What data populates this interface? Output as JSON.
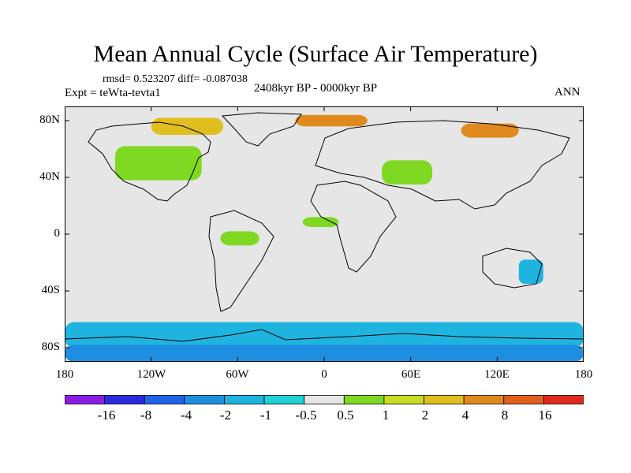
{
  "title": "Mean Annual Cycle (Surface Air Temperature)",
  "stats": "rmsd= 0.523207 diff= -0.087038",
  "experiment": "Expt = teWta-tevta1",
  "period": "2408kyr BP - 0000kyr BP",
  "season": "ANN",
  "colors": {
    "background": "#e6e6e6",
    "coastline": "#000000"
  },
  "map": {
    "lat_range": [
      -90,
      90
    ],
    "lon_range": [
      -180,
      180
    ],
    "lat_ticks": [
      {
        "value": 80,
        "label": "80N"
      },
      {
        "value": 40,
        "label": "40N"
      },
      {
        "value": 0,
        "label": "0"
      },
      {
        "value": -40,
        "label": "40S"
      },
      {
        "value": -80,
        "label": "80S"
      }
    ],
    "lon_ticks": [
      {
        "value": -180,
        "label": "180"
      },
      {
        "value": -120,
        "label": "120W"
      },
      {
        "value": -60,
        "label": "60W"
      },
      {
        "value": 0,
        "label": "0"
      },
      {
        "value": 60,
        "label": "60E"
      },
      {
        "value": 120,
        "label": "120E"
      },
      {
        "value": 180,
        "label": "180"
      }
    ],
    "anomalies": [
      {
        "region": "southern-ocean-band",
        "level": "-1",
        "lon": [
          -180,
          180
        ],
        "lat": [
          -80,
          -62
        ]
      },
      {
        "region": "antarctica-coast",
        "level": "-2",
        "lon": [
          -180,
          180
        ],
        "lat": [
          -90,
          -78
        ]
      },
      {
        "region": "north-america",
        "level": "0.5",
        "lon": [
          -145,
          -85
        ],
        "lat": [
          38,
          62
        ]
      },
      {
        "region": "central-asia",
        "level": "0.5",
        "lon": [
          40,
          75
        ],
        "lat": [
          35,
          52
        ]
      },
      {
        "region": "sahel",
        "level": "0.5",
        "lon": [
          -15,
          10
        ],
        "lat": [
          5,
          12
        ]
      },
      {
        "region": "amazon",
        "level": "0.5",
        "lon": [
          -72,
          -45
        ],
        "lat": [
          -8,
          2
        ]
      },
      {
        "region": "australia",
        "level": "-1",
        "lon": [
          135,
          152
        ],
        "lat": [
          -35,
          -18
        ]
      },
      {
        "region": "greenland-sea",
        "level": "4",
        "lon": [
          -20,
          30
        ],
        "lat": [
          76,
          84
        ]
      },
      {
        "region": "canadian-arctic",
        "level": "2",
        "lon": [
          -120,
          -70
        ],
        "lat": [
          70,
          82
        ]
      },
      {
        "region": "siberia",
        "level": "4",
        "lon": [
          95,
          135
        ],
        "lat": [
          68,
          78
        ]
      }
    ]
  },
  "colorbar": {
    "labels": [
      "-16",
      "-8",
      "-4",
      "-2",
      "-1",
      "-0.5",
      "0.5",
      "1",
      "2",
      "4",
      "8",
      "16"
    ],
    "colors": [
      "#8b1ce6",
      "#2b2ae0",
      "#1f63e8",
      "#1e8fe0",
      "#1fb4e0",
      "#20d1d6",
      "#e6e6e6",
      "#7fd822",
      "#c7dc22",
      "#e0be1e",
      "#e08a1e",
      "#e0601e",
      "#e02a1e"
    ]
  }
}
